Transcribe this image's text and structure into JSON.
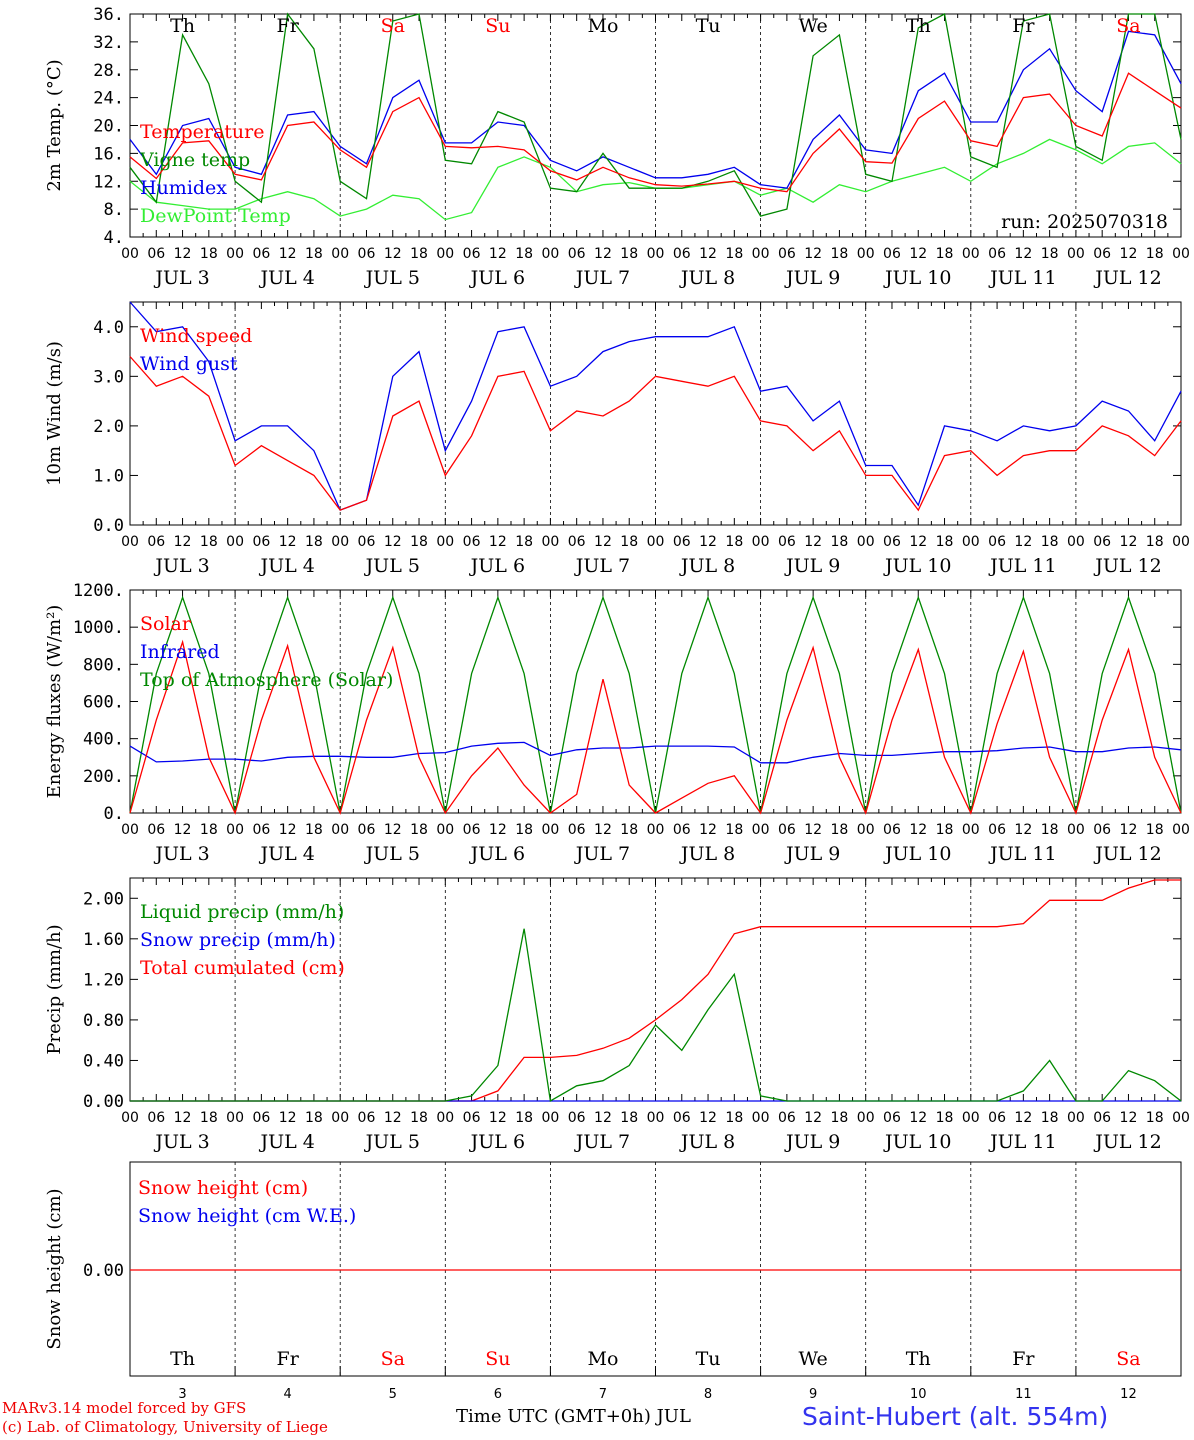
{
  "chart_data": [
    {
      "type": "line",
      "ylabel": "2m Temp. (°C)",
      "ylim": [
        4,
        36
      ],
      "yticks": [
        "4.",
        "8.",
        "12.",
        "16.",
        "20.",
        "24.",
        "28.",
        "32.",
        "36."
      ],
      "annotation": "run: 2025070318",
      "x_hours": [
        0,
        6,
        12,
        18,
        24,
        30,
        36,
        42,
        48,
        54,
        60,
        66,
        72,
        78,
        84,
        90,
        96,
        102,
        108,
        114,
        120,
        126,
        132,
        138,
        144,
        150,
        156,
        162,
        168,
        174,
        180,
        186,
        192,
        198,
        204,
        210,
        216,
        222,
        228,
        234,
        240
      ],
      "series": [
        {
          "name": "Temperature",
          "color": "#ff0000",
          "values": [
            15.5,
            12.4,
            17.5,
            17.8,
            13.0,
            12.2,
            20.0,
            20.5,
            16.5,
            14.0,
            22.0,
            24.0,
            17.0,
            16.8,
            17.0,
            16.5,
            13.5,
            12.2,
            14.0,
            12.5,
            11.5,
            11.3,
            11.6,
            12.0,
            11.0,
            10.5,
            16.0,
            19.5,
            14.8,
            14.6,
            21.0,
            23.5,
            17.8,
            17.0,
            24.0,
            24.5,
            20.0,
            18.5,
            27.5,
            25.0,
            22.5
          ]
        },
        {
          "name": "Vigne temp",
          "color": "#008800",
          "values": [
            14.0,
            9.0,
            33.0,
            26.0,
            12.0,
            9.0,
            36.0,
            31.0,
            12.0,
            9.5,
            35.0,
            36.0,
            15.0,
            14.5,
            22.0,
            20.5,
            11.0,
            10.5,
            16.0,
            11.0,
            11.0,
            11.0,
            12.0,
            13.5,
            7.0,
            8.0,
            30.0,
            33.0,
            13.0,
            12.0,
            34.0,
            36.0,
            15.5,
            14.0,
            35.0,
            36.0,
            17.0,
            15.0,
            36.0,
            36.0,
            18.0
          ]
        },
        {
          "name": "Humidex",
          "color": "#0000ee",
          "values": [
            18.0,
            13.0,
            20.0,
            21.0,
            14.0,
            13.0,
            21.5,
            22.0,
            17.0,
            14.5,
            24.0,
            26.5,
            17.5,
            17.5,
            20.5,
            20.0,
            15.0,
            13.5,
            15.5,
            14.0,
            12.5,
            12.5,
            13.0,
            14.0,
            11.5,
            11.0,
            18.0,
            21.5,
            16.5,
            16.0,
            25.0,
            27.5,
            20.5,
            20.5,
            28.0,
            31.0,
            25.0,
            22.0,
            33.5,
            33.0,
            26.0
          ]
        },
        {
          "name": "DewPoint Temp",
          "color": "#33ee33",
          "values": [
            12.0,
            9.0,
            8.5,
            8.0,
            8.0,
            9.5,
            10.5,
            9.5,
            7.0,
            8.0,
            10.0,
            9.5,
            6.5,
            7.5,
            14.0,
            15.5,
            14.0,
            10.5,
            11.5,
            11.8,
            11.0,
            11.0,
            11.5,
            12.0,
            10.0,
            11.0,
            9.0,
            11.5,
            10.5,
            12.0,
            13.0,
            14.0,
            12.0,
            14.5,
            16.0,
            18.0,
            16.5,
            14.5,
            17.0,
            17.5,
            14.5
          ]
        }
      ]
    },
    {
      "type": "line",
      "ylabel": "10m Wind (m/s)",
      "ylim": [
        0,
        4.5
      ],
      "yticks": [
        "0.0",
        "1.0",
        "2.0",
        "3.0",
        "4.0"
      ],
      "x_hours": [
        0,
        6,
        12,
        18,
        24,
        30,
        36,
        42,
        48,
        54,
        60,
        66,
        72,
        78,
        84,
        90,
        96,
        102,
        108,
        114,
        120,
        126,
        132,
        138,
        144,
        150,
        156,
        162,
        168,
        174,
        180,
        186,
        192,
        198,
        204,
        210,
        216,
        222,
        228,
        234,
        240
      ],
      "series": [
        {
          "name": "Wind speed",
          "color": "#ff0000",
          "values": [
            3.4,
            2.8,
            3.0,
            2.6,
            1.2,
            1.6,
            1.3,
            1.0,
            0.3,
            0.5,
            2.2,
            2.5,
            1.0,
            1.8,
            3.0,
            3.1,
            1.9,
            2.3,
            2.2,
            2.5,
            3.0,
            2.9,
            2.8,
            3.0,
            2.1,
            2.0,
            1.5,
            1.9,
            1.0,
            1.0,
            0.3,
            1.4,
            1.5,
            1.0,
            1.4,
            1.5,
            1.5,
            2.0,
            1.8,
            1.4,
            2.1
          ]
        },
        {
          "name": "Wind gust",
          "color": "#0000ee",
          "values": [
            4.5,
            3.9,
            4.0,
            3.3,
            1.7,
            2.0,
            2.0,
            1.5,
            0.3,
            0.5,
            3.0,
            3.5,
            1.5,
            2.5,
            3.9,
            4.0,
            2.8,
            3.0,
            3.5,
            3.7,
            3.8,
            3.8,
            3.8,
            4.0,
            2.7,
            2.8,
            2.1,
            2.5,
            1.2,
            1.2,
            0.4,
            2.0,
            1.9,
            1.7,
            2.0,
            1.9,
            2.0,
            2.5,
            2.3,
            1.7,
            2.7
          ]
        }
      ]
    },
    {
      "type": "line",
      "ylabel": "Energy fluxes (W/m²)",
      "ylim": [
        0,
        1200
      ],
      "yticks": [
        "0.",
        "200.",
        "400.",
        "600.",
        "800.",
        "1000.",
        "1200."
      ],
      "x_hours": [
        0,
        6,
        12,
        18,
        24,
        30,
        36,
        42,
        48,
        54,
        60,
        66,
        72,
        78,
        84,
        90,
        96,
        102,
        108,
        114,
        120,
        126,
        132,
        138,
        144,
        150,
        156,
        162,
        168,
        174,
        180,
        186,
        192,
        198,
        204,
        210,
        216,
        222,
        228,
        234,
        240
      ],
      "series": [
        {
          "name": "Solar",
          "color": "#ff0000",
          "values": [
            0,
            500,
            920,
            300,
            0,
            500,
            900,
            300,
            0,
            500,
            890,
            300,
            0,
            200,
            350,
            150,
            0,
            100,
            720,
            150,
            0,
            80,
            160,
            200,
            0,
            500,
            890,
            300,
            0,
            500,
            880,
            300,
            0,
            480,
            870,
            300,
            0,
            500,
            880,
            300,
            0
          ]
        },
        {
          "name": "Infrared",
          "color": "#0000ee",
          "values": [
            360,
            275,
            280,
            290,
            290,
            280,
            300,
            305,
            305,
            300,
            300,
            320,
            325,
            360,
            375,
            380,
            310,
            340,
            350,
            350,
            360,
            360,
            360,
            355,
            270,
            270,
            300,
            320,
            310,
            310,
            320,
            330,
            330,
            335,
            350,
            355,
            330,
            330,
            350,
            355,
            340
          ]
        },
        {
          "name": "Top of Atmosphere (Solar)",
          "color": "#008800",
          "values": [
            0,
            750,
            1160,
            750,
            0,
            750,
            1160,
            750,
            0,
            750,
            1160,
            750,
            0,
            750,
            1160,
            750,
            0,
            750,
            1160,
            750,
            0,
            750,
            1160,
            750,
            0,
            750,
            1160,
            750,
            0,
            750,
            1160,
            750,
            0,
            750,
            1160,
            750,
            0,
            750,
            1160,
            750,
            0
          ]
        }
      ]
    },
    {
      "type": "line",
      "ylabel": "Precip (mm/h)",
      "ylim": [
        0,
        2.2
      ],
      "yticks": [
        "0.00",
        "0.40",
        "0.80",
        "1.20",
        "1.60",
        "2.00"
      ],
      "x_hours": [
        0,
        6,
        12,
        18,
        24,
        30,
        36,
        42,
        48,
        54,
        60,
        66,
        72,
        78,
        84,
        90,
        96,
        102,
        108,
        114,
        120,
        126,
        132,
        138,
        144,
        150,
        156,
        162,
        168,
        174,
        180,
        186,
        192,
        198,
        204,
        210,
        216,
        222,
        228,
        234,
        240
      ],
      "series": [
        {
          "name": "Liquid precip (mm/h)",
          "color": "#008800",
          "values": [
            0,
            0,
            0,
            0,
            0,
            0,
            0,
            0,
            0,
            0,
            0,
            0,
            0,
            0.05,
            0.35,
            1.7,
            0.0,
            0.15,
            0.2,
            0.35,
            0.75,
            0.5,
            0.9,
            1.25,
            0.05,
            0,
            0,
            0,
            0,
            0,
            0,
            0,
            0,
            0,
            0.1,
            0.4,
            0.0,
            0,
            0.3,
            0.2,
            0
          ]
        },
        {
          "name": "Snow precip (mm/h)",
          "color": "#0000ee",
          "values": [
            0,
            0,
            0,
            0,
            0,
            0,
            0,
            0,
            0,
            0,
            0,
            0,
            0,
            0,
            0,
            0,
            0,
            0,
            0,
            0,
            0,
            0,
            0,
            0,
            0,
            0,
            0,
            0,
            0,
            0,
            0,
            0,
            0,
            0,
            0,
            0,
            0,
            0,
            0,
            0,
            0
          ]
        },
        {
          "name": "Total cumulated (cm)",
          "color": "#ff0000",
          "values": [
            0,
            0,
            0,
            0,
            0,
            0,
            0,
            0,
            0,
            0,
            0,
            0,
            0,
            0,
            0.1,
            0.43,
            0.43,
            0.45,
            0.52,
            0.62,
            0.8,
            1.0,
            1.25,
            1.65,
            1.72,
            1.72,
            1.72,
            1.72,
            1.72,
            1.72,
            1.72,
            1.72,
            1.72,
            1.72,
            1.75,
            1.98,
            1.98,
            1.98,
            2.1,
            2.18,
            2.18
          ]
        }
      ]
    },
    {
      "type": "line",
      "ylabel": "Snow height (cm)",
      "yticks": [
        "0.00"
      ],
      "series": [
        {
          "name": "Snow height (cm)",
          "color": "#ff0000",
          "values": [
            0,
            0
          ]
        },
        {
          "name": "Snow height (cm W.E.)",
          "color": "#0000ee",
          "values": [
            0,
            0
          ]
        }
      ]
    }
  ],
  "days": [
    {
      "name": "Th",
      "num": "3",
      "label": "JUL  3",
      "weekend": false
    },
    {
      "name": "Fr",
      "num": "4",
      "label": "JUL  4",
      "weekend": false
    },
    {
      "name": "Sa",
      "num": "5",
      "label": "JUL  5",
      "weekend": true
    },
    {
      "name": "Su",
      "num": "6",
      "label": "JUL  6",
      "weekend": true
    },
    {
      "name": "Mo",
      "num": "7",
      "label": "JUL  7",
      "weekend": false
    },
    {
      "name": "Tu",
      "num": "8",
      "label": "JUL  8",
      "weekend": false
    },
    {
      "name": "We",
      "num": "9",
      "label": "JUL  9",
      "weekend": false
    },
    {
      "name": "Th",
      "num": "10",
      "label": "JUL 10",
      "weekend": false
    },
    {
      "name": "Fr",
      "num": "11",
      "label": "JUL 11",
      "weekend": false
    },
    {
      "name": "Sa",
      "num": "12",
      "label": "JUL 12",
      "weekend": true
    }
  ],
  "hour_labels": [
    "00",
    "06",
    "12",
    "18"
  ],
  "end_hour_label": "00",
  "footer": {
    "credit_line1": "MARv3.14 model forced by GFS",
    "credit_line2": "(c) Lab. of Climatology, University of Liege",
    "xlabel": "Time UTC (GMT+0h) JUL",
    "station": "Saint-Hubert (alt. 554m)"
  },
  "colors": {
    "weekday": "#000000",
    "weekend": "#ff0000",
    "station": "#3333ee",
    "credit": "#ee0000"
  }
}
